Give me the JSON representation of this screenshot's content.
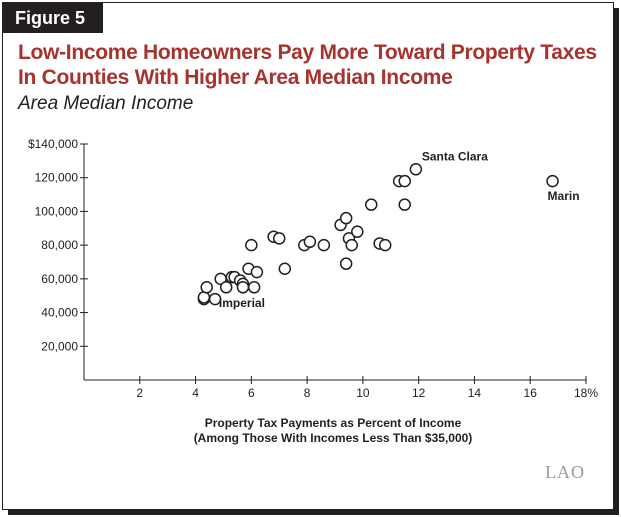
{
  "figure_label": "Figure 5",
  "title_line1": "Low-Income Homeowners Pay More Toward Property Taxes",
  "title_line2": "In Counties With Higher Area Median Income",
  "subtitle": "Area Median Income",
  "logo": "LAO",
  "colors": {
    "title": "#a8322d",
    "ink": "#231f20",
    "logo": "#9a9a9a"
  },
  "chart_data": {
    "type": "scatter",
    "title": "Low-Income Homeowners Pay More Toward Property Taxes In Counties With Higher Area Median Income",
    "ylabel": "Area Median Income",
    "xlabel_line1": "Property Tax Payments as Percent of Income",
    "xlabel_line2": "(Among Those With Incomes Less Than $35,000)",
    "xlim": [
      0,
      18
    ],
    "ylim": [
      0,
      140000
    ],
    "x_ticks": [
      2,
      4,
      6,
      8,
      10,
      12,
      14,
      16,
      18
    ],
    "x_tick_labels": [
      "2",
      "4",
      "6",
      "8",
      "10",
      "12",
      "14",
      "16",
      "18%"
    ],
    "y_ticks": [
      20000,
      40000,
      60000,
      80000,
      100000,
      120000,
      140000
    ],
    "y_tick_labels": [
      "20,000",
      "40,000",
      "60,000",
      "80,000",
      "100,000",
      "120,000",
      "$140,000"
    ],
    "grid": false,
    "points": [
      {
        "x": 4.3,
        "y": 48000
      },
      {
        "x": 4.3,
        "y": 49000
      },
      {
        "x": 4.4,
        "y": 55000
      },
      {
        "x": 4.7,
        "y": 48000
      },
      {
        "x": 4.9,
        "y": 60000
      },
      {
        "x": 5.1,
        "y": 55000
      },
      {
        "x": 5.3,
        "y": 61000
      },
      {
        "x": 5.4,
        "y": 61000
      },
      {
        "x": 5.6,
        "y": 59000
      },
      {
        "x": 5.7,
        "y": 57000
      },
      {
        "x": 5.7,
        "y": 55000
      },
      {
        "x": 5.9,
        "y": 66000
      },
      {
        "x": 6.1,
        "y": 55000
      },
      {
        "x": 6.2,
        "y": 64000
      },
      {
        "x": 6.0,
        "y": 80000
      },
      {
        "x": 6.8,
        "y": 85000
      },
      {
        "x": 7.0,
        "y": 84000
      },
      {
        "x": 7.2,
        "y": 66000
      },
      {
        "x": 7.9,
        "y": 80000
      },
      {
        "x": 8.1,
        "y": 82000
      },
      {
        "x": 8.6,
        "y": 80000
      },
      {
        "x": 9.2,
        "y": 92000
      },
      {
        "x": 9.4,
        "y": 96000
      },
      {
        "x": 9.5,
        "y": 84000
      },
      {
        "x": 9.4,
        "y": 69000
      },
      {
        "x": 9.6,
        "y": 80000
      },
      {
        "x": 9.8,
        "y": 88000
      },
      {
        "x": 10.3,
        "y": 104000
      },
      {
        "x": 10.6,
        "y": 81000
      },
      {
        "x": 10.8,
        "y": 80000
      },
      {
        "x": 11.3,
        "y": 118000
      },
      {
        "x": 11.5,
        "y": 118000
      },
      {
        "x": 11.5,
        "y": 104000
      },
      {
        "x": 11.9,
        "y": 125000
      },
      {
        "x": 16.8,
        "y": 118000
      }
    ],
    "annotations": [
      {
        "text": "Santa Clara",
        "x": 11.9,
        "y": 125000,
        "anchor": "above-right"
      },
      {
        "text": "Marin",
        "x": 16.8,
        "y": 118000,
        "anchor": "below"
      },
      {
        "text": "Imperial",
        "x": 4.3,
        "y": 48000,
        "anchor": "right"
      }
    ]
  }
}
